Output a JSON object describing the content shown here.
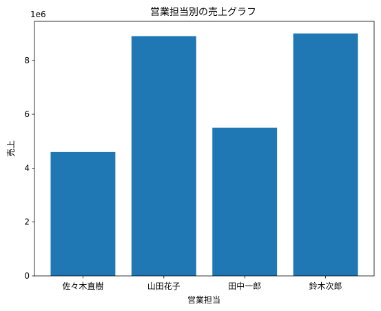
{
  "chart_data": {
    "type": "bar",
    "title": "営業担当別の売上グラフ",
    "xlabel": "営業担当",
    "ylabel": "売上",
    "categories": [
      "佐々木直樹",
      "山田花子",
      "田中一郎",
      "鈴木次郎"
    ],
    "values": [
      4600000,
      8900000,
      5500000,
      9000000
    ],
    "ylim": [
      0,
      9450000
    ],
    "y_ticks": [
      0,
      2000000,
      4000000,
      6000000,
      8000000
    ],
    "y_tick_labels": [
      "0",
      "2",
      "4",
      "6",
      "8"
    ],
    "y_offset_label": "1e6",
    "bar_color": "#1f77b4",
    "grid": false,
    "legend": "none"
  }
}
